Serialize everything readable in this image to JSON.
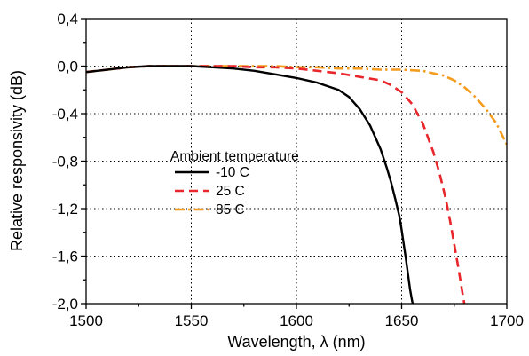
{
  "chart_data": {
    "type": "line",
    "xlabel": "Wavelength, λ (nm)",
    "ylabel": "Relative responsivity (dB)",
    "xlim": [
      1500,
      1700
    ],
    "ylim": [
      -2.0,
      0.4
    ],
    "x_ticks": [
      "1500",
      "1550",
      "1600",
      "1650",
      "1700"
    ],
    "y_ticks": [
      "0,4",
      "0,0",
      "-0,4",
      "-0,8",
      "-1,2",
      "-1,6",
      "-2,0"
    ],
    "x_minor_step": 25,
    "y_minor_step": 0.2,
    "grid": "dotted",
    "legend": {
      "title": "Ambient temperature",
      "placement": "center-left"
    },
    "series": [
      {
        "name": "-10 C",
        "color": "#000000",
        "style": "solid",
        "x": [
          1500,
          1510,
          1520,
          1530,
          1540,
          1550,
          1560,
          1570,
          1580,
          1590,
          1600,
          1610,
          1620,
          1625,
          1630,
          1635,
          1640,
          1643,
          1645,
          1647,
          1649,
          1650,
          1651,
          1652,
          1653,
          1654,
          1655,
          1656
        ],
        "y": [
          -0.05,
          -0.03,
          -0.01,
          0.0,
          0.0,
          0.0,
          -0.01,
          -0.02,
          -0.04,
          -0.07,
          -0.1,
          -0.14,
          -0.2,
          -0.26,
          -0.36,
          -0.5,
          -0.7,
          -0.86,
          -0.98,
          -1.12,
          -1.27,
          -1.38,
          -1.5,
          -1.62,
          -1.75,
          -1.88,
          -1.98,
          -2.05
        ]
      },
      {
        "name": "25 C",
        "color": "#e8262b",
        "style": "dashed",
        "x": [
          1500,
          1510,
          1520,
          1530,
          1540,
          1550,
          1560,
          1570,
          1580,
          1590,
          1600,
          1610,
          1620,
          1630,
          1640,
          1645,
          1650,
          1655,
          1660,
          1665,
          1668,
          1671,
          1673,
          1675,
          1677,
          1679,
          1680
        ],
        "y": [
          -0.05,
          -0.03,
          -0.01,
          0.0,
          0.0,
          0.0,
          0.0,
          0.0,
          -0.01,
          -0.01,
          -0.02,
          -0.04,
          -0.06,
          -0.09,
          -0.12,
          -0.16,
          -0.22,
          -0.32,
          -0.48,
          -0.72,
          -0.9,
          -1.12,
          -1.3,
          -1.5,
          -1.7,
          -1.92,
          -2.02
        ]
      },
      {
        "name": "85 C",
        "color": "#f39c1e",
        "style": "dashdot",
        "x": [
          1500,
          1510,
          1520,
          1530,
          1540,
          1550,
          1560,
          1570,
          1580,
          1590,
          1600,
          1610,
          1620,
          1630,
          1640,
          1650,
          1660,
          1670,
          1675,
          1680,
          1685,
          1690,
          1695,
          1700
        ],
        "y": [
          -0.05,
          -0.03,
          -0.01,
          0.0,
          0.0,
          0.0,
          0.0,
          0.0,
          0.0,
          0.0,
          -0.01,
          -0.01,
          -0.02,
          -0.02,
          -0.03,
          -0.03,
          -0.04,
          -0.08,
          -0.12,
          -0.18,
          -0.26,
          -0.36,
          -0.48,
          -0.66
        ]
      }
    ]
  }
}
